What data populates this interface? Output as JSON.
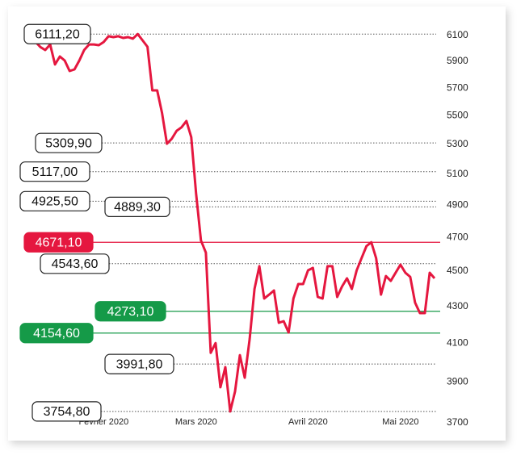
{
  "chart_data": {
    "type": "line",
    "categories": [
      null,
      null,
      null,
      null,
      null,
      null,
      null,
      null,
      null,
      null,
      null,
      null,
      null,
      null,
      "Fevrier 2020",
      null,
      null,
      null,
      null,
      null,
      null,
      null,
      null,
      null,
      null,
      null,
      null,
      null,
      null,
      null,
      null,
      null,
      null,
      "Mars 2020",
      null,
      null,
      null,
      null,
      null,
      null,
      null,
      null,
      null,
      null,
      null,
      null,
      null,
      null,
      null,
      null,
      null,
      null,
      null,
      null,
      null,
      null,
      "Avril 2020",
      null,
      null,
      null,
      null,
      null,
      null,
      null,
      null,
      null,
      null,
      null,
      null,
      null,
      null,
      null,
      null,
      null,
      null,
      "Mai 2020",
      null,
      null,
      null,
      null,
      null,
      null,
      null
    ],
    "series": [
      {
        "color": "#e5173f",
        "values": [
          6050,
          6010,
          5987,
          6030,
          5876,
          5937,
          5906,
          5827,
          5839,
          5906,
          5987,
          6030,
          6030,
          6024,
          6049,
          6094,
          6087,
          6094,
          6081,
          6087,
          6075,
          6111.2,
          6062,
          6012,
          5683,
          5683,
          5520,
          5305,
          5339,
          5394,
          5418,
          5463,
          5350,
          4973,
          4682,
          4609,
          4050,
          4101,
          3874,
          3976,
          3754.8,
          3853,
          4038,
          3922,
          4123,
          4398,
          4529,
          4344,
          4366,
          4389,
          4210,
          4219,
          4158,
          4344,
          4426,
          4426,
          4505,
          4519,
          4353,
          4344,
          4529,
          4529,
          4353,
          4412,
          4459,
          4398,
          4505,
          4576,
          4648,
          4671.1,
          4576,
          4366,
          4472,
          4444,
          4491,
          4538,
          4491,
          4467,
          4321,
          4263,
          4263,
          4491,
          4459
        ]
      }
    ],
    "ylim": [
      3700,
      6100
    ],
    "yticks": [
      3700,
      3900,
      4100,
      4300,
      4500,
      4700,
      4900,
      5100,
      5300,
      5500,
      5700,
      5900,
      6100
    ],
    "log_y": true,
    "annotations": [
      {
        "value": 6111.2,
        "label": "6111,20"
      },
      {
        "value": 5309.9,
        "label": "5309,90"
      },
      {
        "value": 5117,
        "label": "5117,00"
      },
      {
        "value": 4925.5,
        "label": "4925,50"
      },
      {
        "value": 4889.3,
        "label": "4889,30"
      },
      {
        "value": 4671.1,
        "label": "4671,10",
        "color": "#e5173f"
      },
      {
        "value": 4543.6,
        "label": "4543,60"
      },
      {
        "value": 4273.1,
        "label": "4273,10",
        "color": "#159a48"
      },
      {
        "value": 4154.6,
        "label": "4154,60",
        "color": "#159a48"
      },
      {
        "value": 3991.8,
        "label": "3991,80"
      },
      {
        "value": 3754.8,
        "label": "3754,80"
      }
    ]
  }
}
